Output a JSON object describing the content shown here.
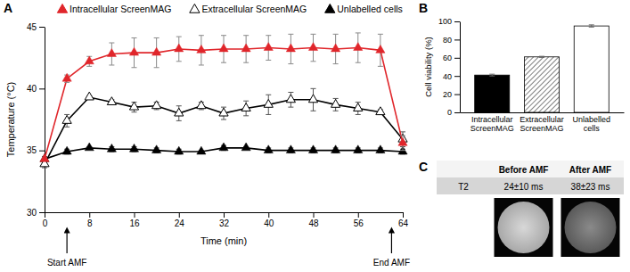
{
  "chart_data": [
    {
      "type": "line",
      "panel_label": "A",
      "x_label": "Time (min)",
      "y_label": "Temperature (°C)",
      "x": [
        0,
        4,
        8,
        12,
        16,
        20,
        24,
        28,
        32,
        36,
        40,
        44,
        48,
        52,
        56,
        60,
        64
      ],
      "xlim": [
        0,
        64
      ],
      "xticks": [
        0,
        8,
        16,
        24,
        32,
        40,
        48,
        56,
        64
      ],
      "ylim": [
        30,
        45
      ],
      "yticks": [
        30,
        35,
        40,
        45
      ],
      "legend": "top",
      "grid": false,
      "series": [
        {
          "name": "Intracellular ScreenMAG",
          "color": "#e0262b",
          "marker": "triangle",
          "values": [
            34.3,
            40.8,
            42.2,
            42.8,
            42.9,
            42.9,
            43.2,
            43.1,
            43.2,
            43.2,
            43.3,
            43.2,
            43.3,
            43.2,
            43.3,
            43.1,
            35.6
          ],
          "errors": [
            0.1,
            0.3,
            0.4,
            0.9,
            1.2,
            1.2,
            1.0,
            1.2,
            1.1,
            1.1,
            1.0,
            1.2,
            1.1,
            1.2,
            1.2,
            1.3,
            0.6
          ]
        },
        {
          "name": "Extracellular ScreenMAG",
          "color": "#000000",
          "marker": "triangle-open",
          "values": [
            33.9,
            37.4,
            39.3,
            38.9,
            38.5,
            38.6,
            38.0,
            38.6,
            38.0,
            38.4,
            38.7,
            39.1,
            39.1,
            38.7,
            38.4,
            38.1,
            35.9
          ],
          "errors": [
            0.3,
            0.5,
            0.1,
            0.2,
            0.4,
            0.3,
            0.6,
            0.3,
            0.5,
            0.6,
            0.8,
            0.6,
            0.9,
            0.5,
            0.5,
            0.2,
            0.6
          ]
        },
        {
          "name": "Unlabelled cells",
          "color": "#000000",
          "marker": "triangle",
          "values": [
            34.3,
            34.9,
            35.2,
            35.1,
            35.1,
            35.0,
            34.9,
            34.9,
            35.2,
            35.2,
            35.0,
            35.0,
            35.0,
            35.0,
            35.0,
            35.0,
            34.9
          ],
          "errors": [
            0.2,
            0.2,
            0.1,
            0.2,
            0.2,
            0.2,
            0.2,
            0.1,
            0.2,
            0.1,
            0.2,
            0.2,
            0.2,
            0.2,
            0.2,
            0.2,
            0.2
          ]
        }
      ],
      "annotations": [
        {
          "text": "Start AMF",
          "x": 4
        },
        {
          "text": "End AMF",
          "x": 62
        }
      ]
    },
    {
      "type": "bar",
      "panel_label": "B",
      "y_label": "Cell viability (%)",
      "categories": [
        "Intracellular ScreenMAG",
        "Extracellular ScreenMAG",
        "Unlabelled cells"
      ],
      "values": [
        41,
        61,
        95
      ],
      "errors": [
        1,
        0.6,
        1.2
      ],
      "colors": [
        "#000000",
        "#7f7f7f",
        "#ffffff"
      ],
      "ylim": [
        0,
        100
      ],
      "yticks": [
        0,
        20,
        40,
        60,
        80,
        100
      ],
      "grid": false
    },
    {
      "type": "table",
      "panel_label": "C",
      "columns": [
        "Before AMF",
        "After AMF"
      ],
      "rows": [
        {
          "label": "T2",
          "values": [
            "24±10 ms",
            "38±23 ms"
          ]
        }
      ]
    }
  ]
}
